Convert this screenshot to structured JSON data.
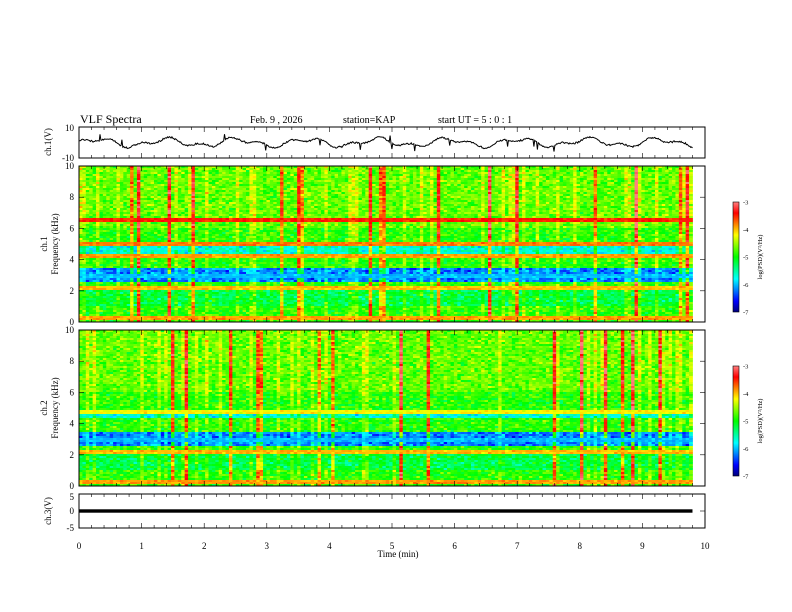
{
  "header": {
    "title": "VLF Spectra",
    "date": "Feb. 9 , 2026",
    "station": "station=KAP",
    "start": "start  UT =   5 : 0  : 1"
  },
  "colors": {
    "frame": "#000000",
    "spectrogram_scale": [
      "#00007a",
      "#0000ff",
      "#0080ff",
      "#00ffff",
      "#00ff80",
      "#00ff00",
      "#80ff00",
      "#ffff00",
      "#ff8000",
      "#ff0000",
      "#ff8080",
      "#ffffff"
    ]
  },
  "chart_data": [
    {
      "type": "line",
      "name": "ch1-waveform",
      "ylabel": "ch.1(V)",
      "ylim": [
        -10,
        10
      ],
      "yticks": [
        "10",
        "-10"
      ],
      "xlim": [
        0,
        10
      ],
      "series": [
        {
          "name": "ch.1 voltage",
          "x_range": [
            0,
            9.8
          ],
          "y_range": [
            -6,
            7
          ]
        }
      ]
    },
    {
      "type": "heatmap",
      "name": "ch1-spectrogram",
      "ylabel": "ch.1 Frequency (kHz)",
      "ylim": [
        0,
        10
      ],
      "yticks": [
        "0",
        "2",
        "4",
        "6",
        "8",
        "10"
      ],
      "xlim": [
        0,
        9.8
      ],
      "value_range_log": [
        -7,
        -3
      ],
      "colorbar": {
        "label": "log(PSD)(V²/Hz)",
        "ticks": [
          "-3",
          "-4",
          "-5",
          "-6",
          "-7"
        ]
      },
      "bands": [
        {
          "freq": 6.6,
          "log_psd": -3.5
        },
        {
          "freq": 5.0,
          "log_psd": -3.8
        },
        {
          "freq": 4.2,
          "log_psd": -3.9
        },
        {
          "freq": 3.0,
          "log_psd": -6.0
        },
        {
          "freq": 2.2,
          "log_psd": -4.0
        },
        {
          "freq": 0.3,
          "log_psd": -3.9
        }
      ]
    },
    {
      "type": "heatmap",
      "name": "ch2-spectrogram",
      "ylabel": "ch.2 Frequency (kHz)",
      "ylim": [
        0,
        10
      ],
      "yticks": [
        "0",
        "2",
        "4",
        "6",
        "8",
        "10"
      ],
      "xlim": [
        0,
        9.8
      ],
      "value_range_log": [
        -7,
        -3
      ],
      "colorbar": {
        "label": "log(PSD)(V²/Hz)",
        "ticks": [
          "-3",
          "-4",
          "-5",
          "-6",
          "-7"
        ]
      },
      "bands": [
        {
          "freq": 4.8,
          "log_psd": -4.2
        },
        {
          "freq": 3.0,
          "log_psd": -6.0
        },
        {
          "freq": 2.2,
          "log_psd": -4.0
        },
        {
          "freq": 0.3,
          "log_psd": -3.9
        }
      ]
    },
    {
      "type": "line",
      "name": "ch3-waveform",
      "ylabel": "ch.3(V)",
      "ylim": [
        -5,
        5
      ],
      "yticks": [
        "5",
        "0",
        "-5"
      ],
      "xlim": [
        0,
        10
      ],
      "xlabel": "Time (min)",
      "xticks": [
        "0",
        "1",
        "2",
        "3",
        "4",
        "5",
        "6",
        "7",
        "8",
        "9",
        "10"
      ],
      "series": [
        {
          "name": "ch.3 voltage",
          "x_range": [
            0,
            9.8
          ],
          "y_range": [
            -0.5,
            0.5
          ]
        }
      ]
    }
  ]
}
